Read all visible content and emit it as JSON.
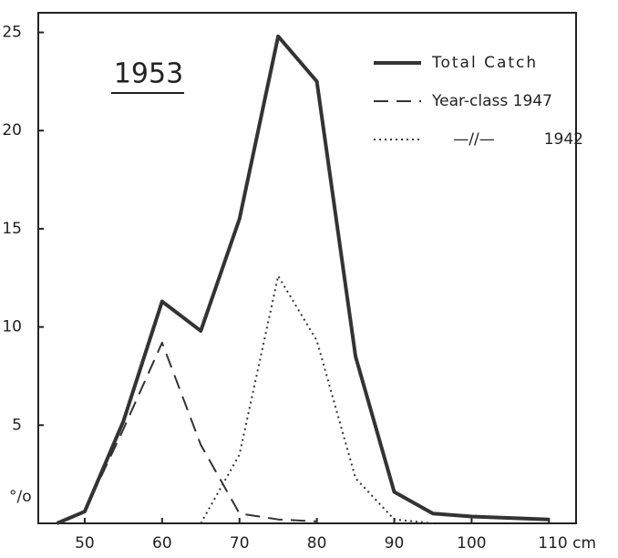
{
  "chart_data": {
    "type": "line",
    "annotation": "1953",
    "y_label": "°/o",
    "ditto_mark": "—//—",
    "xlim": [
      44,
      113.5
    ],
    "ylim": [
      0,
      26
    ],
    "xticks": [
      50,
      60,
      70,
      80,
      90,
      100,
      {
        "value": 110,
        "label": "110 cm"
      }
    ],
    "yticks": [
      5,
      10,
      15,
      20,
      25
    ],
    "series": [
      {
        "name": "Total Catch",
        "color": "#333333",
        "style": "solid",
        "x": [
          46.4,
          50,
          55,
          60,
          65,
          70,
          75,
          80,
          85,
          90,
          95,
          100,
          110
        ],
        "values": [
          0,
          0.6,
          5.2,
          11.3,
          9.8,
          15.5,
          24.8,
          22.5,
          8.5,
          1.6,
          0.5,
          0.35,
          0.2
        ]
      },
      {
        "name": "Year-class 1947",
        "color": "#333333",
        "style": "dashed",
        "x": [
          46.4,
          50,
          55,
          60,
          65,
          70,
          75,
          80
        ],
        "values": [
          0,
          0.6,
          4.8,
          9.2,
          4,
          0.5,
          0.2,
          0.1
        ]
      },
      {
        "name": "1942",
        "color": "#333333",
        "style": "dotted",
        "x": [
          65,
          70,
          75,
          80,
          85,
          90,
          95
        ],
        "values": [
          0,
          3.5,
          12.6,
          9.3,
          2.3,
          0.2,
          0
        ]
      }
    ]
  }
}
